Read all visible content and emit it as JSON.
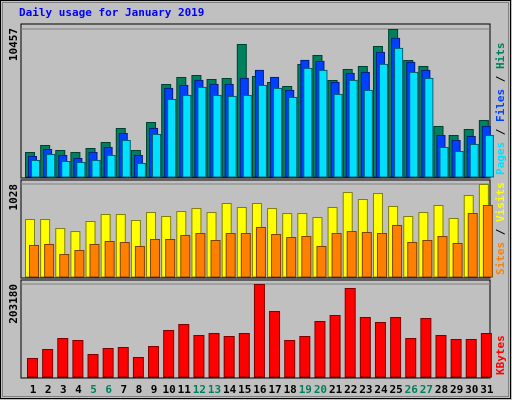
{
  "chart_data": [
    {
      "type": "bar",
      "title": "Daily usage for January 2019",
      "ylim": [
        0,
        10457
      ],
      "yticks": [
        10457
      ],
      "legend_separator": " / ",
      "series": [
        {
          "name": "Hits",
          "color": "#00805C",
          "values": [
            1767,
            2261,
            1908,
            1767,
            2049,
            2473,
            3462,
            1908,
            3886,
            6571,
            7066,
            7207,
            6925,
            6995,
            9398,
            7137,
            6713,
            6430,
            7985,
            8620,
            6854,
            7631,
            7843,
            9256,
            10457,
            8267,
            7843,
            3604,
            2968,
            3392,
            4028
          ]
        },
        {
          "name": "Files",
          "color": "#0040FF",
          "values": [
            1485,
            1980,
            1555,
            1343,
            1768,
            2121,
            3111,
            1555,
            3464,
            6292,
            6504,
            6858,
            6575,
            6575,
            6999,
            7565,
            7070,
            6151,
            8272,
            8201,
            6717,
            7353,
            7424,
            8838,
            9827,
            8131,
            7565,
            2969,
            2616,
            2899,
            3606
          ]
        },
        {
          "name": "Pages",
          "color": "#00E0FF",
          "values": [
            1202,
            1626,
            1131,
            1061,
            1202,
            1555,
            2616,
            990,
            3040,
            5515,
            5797,
            6363,
            5797,
            5727,
            5797,
            6504,
            6292,
            5656,
            7706,
            7565,
            5868,
            6858,
            6151,
            7989,
            9120,
            7424,
            6999,
            2121,
            1838,
            2333,
            2969
          ]
        }
      ]
    },
    {
      "type": "bar",
      "ylim": [
        0,
        1028
      ],
      "yticks": [
        1028
      ],
      "legend_separator": " / ",
      "series": [
        {
          "name": "Visits",
          "color": "#FFFF00",
          "values": [
            641,
            641,
            541,
            508,
            619,
            696,
            696,
            630,
            718,
            674,
            729,
            762,
            718,
            818,
            774,
            818,
            762,
            707,
            707,
            663,
            774,
            939,
            862,
            928,
            785,
            674,
            718,
            796,
            652,
            906,
            1028
          ]
        },
        {
          "name": "Sites",
          "color": "#FF8000",
          "values": [
            354,
            365,
            254,
            298,
            365,
            398,
            387,
            343,
            420,
            420,
            464,
            486,
            409,
            486,
            486,
            553,
            475,
            442,
            453,
            343,
            486,
            508,
            497,
            486,
            575,
            387,
            409,
            453,
            376,
            707,
            796
          ]
        }
      ]
    },
    {
      "type": "bar",
      "ylim": [
        0,
        203180
      ],
      "yticks": [
        203180
      ],
      "categories": [
        "1",
        "2",
        "3",
        "4",
        "5",
        "6",
        "7",
        "8",
        "9",
        "10",
        "11",
        "12",
        "13",
        "14",
        "15",
        "16",
        "17",
        "18",
        "19",
        "20",
        "21",
        "22",
        "23",
        "24",
        "25",
        "26",
        "27",
        "28",
        "29",
        "30",
        "31"
      ],
      "category_colors": [
        "#000000",
        "#000000",
        "#000000",
        "#000000",
        "#00805C",
        "#00805C",
        "#000000",
        "#000000",
        "#000000",
        "#000000",
        "#000000",
        "#00805C",
        "#00805C",
        "#000000",
        "#000000",
        "#000000",
        "#000000",
        "#000000",
        "#00805C",
        "#00805C",
        "#000000",
        "#000000",
        "#000000",
        "#000000",
        "#000000",
        "#00805C",
        "#00805C",
        "#000000",
        "#000000",
        "#000000",
        "#000000"
      ],
      "series": [
        {
          "name": "KBytes",
          "color": "#FF0000",
          "values": [
            41515,
            61180,
            85215,
            80845,
            50255,
            63365,
            65550,
            43700,
            67735,
            102695,
            115805,
            91770,
            96140,
            89585,
            96140,
            203180,
            144210,
            80845,
            89585,
            122360,
            135470,
            194465,
            131100,
            120175,
            131100,
            85215,
            128915,
            91770,
            83030,
            83030,
            96140
          ]
        }
      ]
    }
  ]
}
